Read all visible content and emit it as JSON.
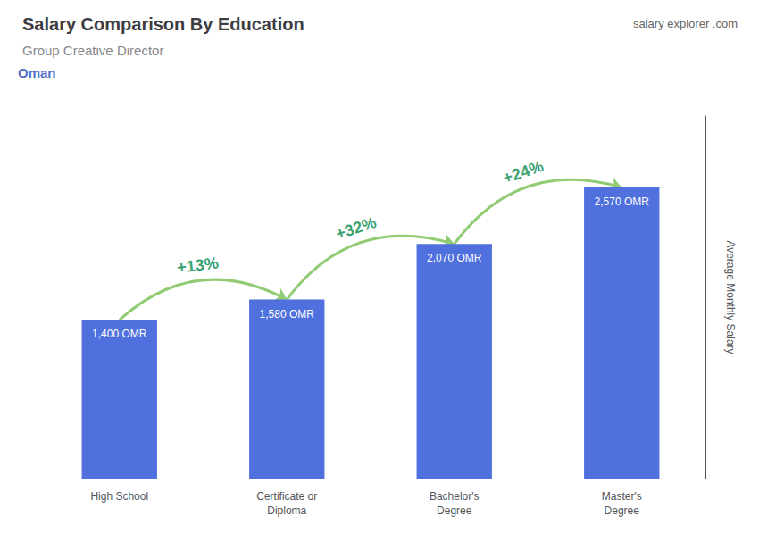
{
  "chart_data": {
    "type": "bar",
    "title": "Salary Comparison By Education",
    "subtitle": "Group Creative Director",
    "annotations": [
      "Oman",
      "salary",
      "explorer",
      ".com"
    ],
    "ylabel": "Average Monthly Salary",
    "categories": [
      "High School",
      "Certificate or\nDiploma",
      "Bachelor's\nDegree",
      "Master's\nDegree"
    ],
    "values": [
      1400,
      1580,
      2070,
      2570
    ],
    "value_labels": [
      "1,400 OMR",
      "1,580 OMR",
      "2,070 OMR",
      "2,570 OMR"
    ],
    "data_labels": true,
    "arrow_labels": [
      "+13%",
      "+32%",
      "+24%"
    ],
    "ylim": [
      0,
      3200
    ],
    "tick_labels": "x",
    "grid": false
  }
}
